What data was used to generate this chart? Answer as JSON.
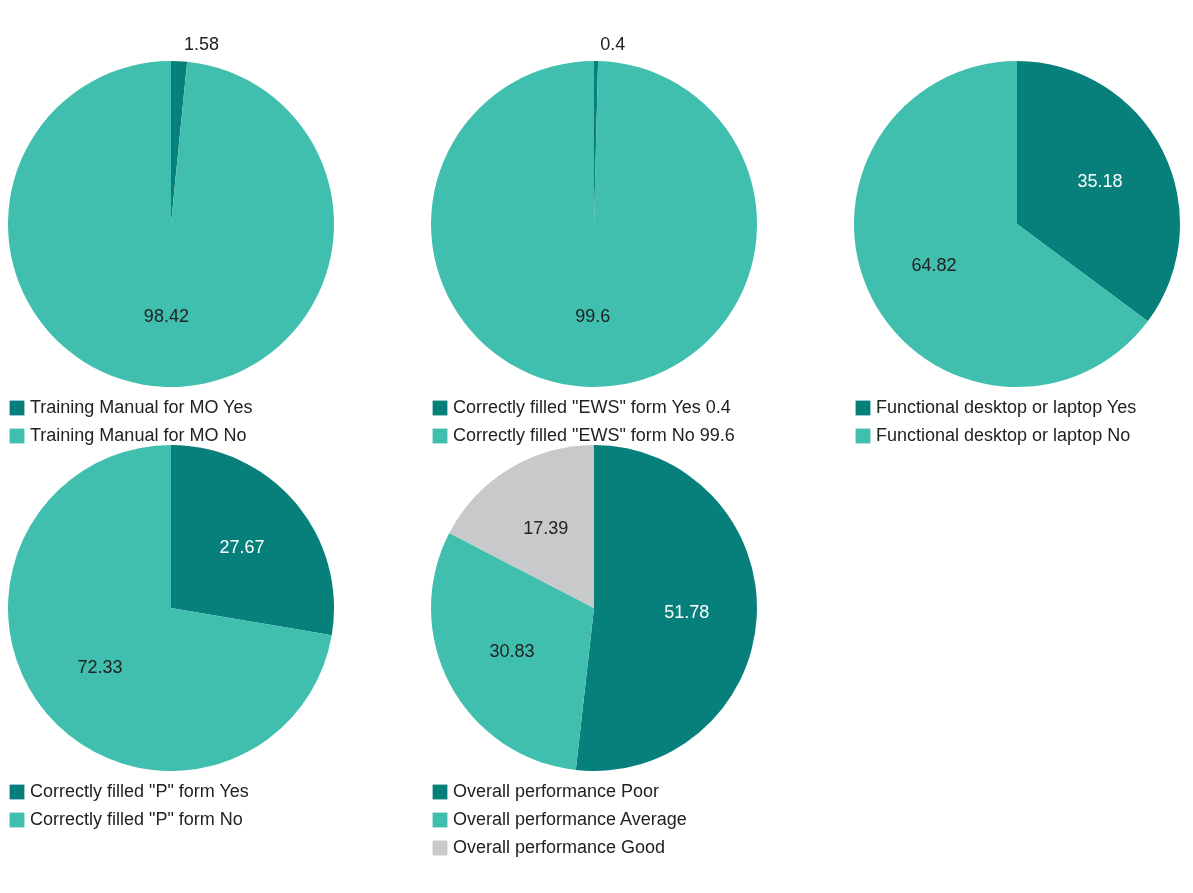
{
  "chart_data": [
    {
      "type": "pie",
      "categories": [
        "Training Manual for MO Yes",
        "Training Manual for MO No"
      ],
      "values": [
        1.58,
        98.42
      ],
      "colors": [
        "#077f7b",
        "#40bfae"
      ],
      "data_labels": true,
      "legend": "bottom"
    },
    {
      "type": "pie",
      "categories": [
        "Correctly filled \"EWS\" form Yes 0.4",
        "Correctly filled \"EWS\" form No 99.6"
      ],
      "values": [
        0.4,
        99.6
      ],
      "colors": [
        "#077f7b",
        "#40bfae"
      ],
      "data_labels": true,
      "legend": "bottom"
    },
    {
      "type": "pie",
      "categories": [
        "Functional desktop or laptop Yes",
        "Functional desktop or laptop No"
      ],
      "values": [
        35.18,
        64.82
      ],
      "colors": [
        "#077f7b",
        "#40bfae"
      ],
      "data_labels": true,
      "legend": "bottom"
    },
    {
      "type": "pie",
      "categories": [
        "Correctly filled \"P\" form Yes",
        "Correctly filled \"P\" form No"
      ],
      "values": [
        27.67,
        72.33
      ],
      "colors": [
        "#077f7b",
        "#40bfae"
      ],
      "data_labels": true,
      "legend": "bottom"
    },
    {
      "type": "pie",
      "categories": [
        "Overall performance  Poor",
        "Overall performance  Average",
        "Overall performance  Good"
      ],
      "values": [
        51.78,
        30.83,
        17.39
      ],
      "colors": [
        "#077f7b",
        "#40bfae",
        "#c8c9cb"
      ],
      "data_labels": true,
      "legend": "bottom"
    }
  ]
}
